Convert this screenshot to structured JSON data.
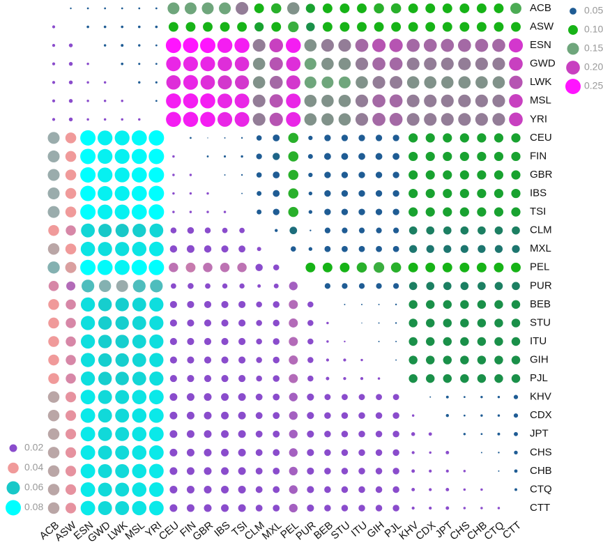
{
  "chart_data": {
    "type": "corrplot",
    "populations": [
      "ACB",
      "ASW",
      "ESN",
      "GWD",
      "LWK",
      "MSL",
      "YRI",
      "CEU",
      "FIN",
      "GBR",
      "IBS",
      "TSI",
      "CLM",
      "MXL",
      "PEL",
      "PUR",
      "BEB",
      "STU",
      "ITU",
      "GIH",
      "PJL",
      "KHV",
      "CDX",
      "JPT",
      "CHS",
      "CHB",
      "CTQ",
      "CTT"
    ],
    "upper_legend": [
      {
        "value": 0.05,
        "label": "0.05",
        "color": "#1f5c94"
      },
      {
        "value": 0.1,
        "label": "0.10",
        "color": "#17b317"
      },
      {
        "value": 0.15,
        "label": "0.15",
        "color": "#6fa67c"
      },
      {
        "value": 0.2,
        "label": "0.20",
        "color": "#c840c0"
      },
      {
        "value": 0.25,
        "label": "0.25",
        "color": "#ff14ff"
      }
    ],
    "lower_legend": [
      {
        "value": 0.02,
        "label": "0.02",
        "color": "#8a4ccc"
      },
      {
        "value": 0.04,
        "label": "0.04",
        "color": "#f09a9a"
      },
      {
        "value": 0.06,
        "label": "0.06",
        "color": "#18c8c8"
      },
      {
        "value": 0.08,
        "label": "0.08",
        "color": "#00ffff"
      }
    ],
    "matrix": [
      [
        null,
        0.003,
        0.004,
        0.004,
        0.004,
        0.004,
        0.004,
        0.15,
        0.15,
        0.15,
        0.15,
        0.17,
        0.1,
        0.11,
        0.16,
        0.09,
        0.1,
        0.1,
        0.1,
        0.11,
        0.11,
        0.1,
        0.1,
        0.1,
        0.1,
        0.1,
        0.1,
        0.13
      ],
      [
        0.003,
        null,
        0.007,
        0.007,
        0.007,
        0.007,
        0.007,
        0.1,
        0.1,
        0.1,
        0.1,
        0.1,
        0.09,
        0.1,
        0.12,
        0.08,
        0.1,
        0.1,
        0.1,
        0.1,
        0.1,
        0.1,
        0.1,
        0.1,
        0.1,
        0.1,
        0.1,
        0.1
      ],
      [
        0.003,
        0.005,
        null,
        0.006,
        0.008,
        0.006,
        0.004,
        0.25,
        0.25,
        0.25,
        0.24,
        0.24,
        0.17,
        0.2,
        0.24,
        0.16,
        0.17,
        0.17,
        0.18,
        0.19,
        0.19,
        0.18,
        0.18,
        0.18,
        0.18,
        0.18,
        0.18,
        0.21
      ],
      [
        0.003,
        0.005,
        0.002,
        null,
        0.007,
        0.005,
        0.004,
        0.23,
        0.23,
        0.23,
        0.22,
        0.22,
        0.16,
        0.19,
        0.22,
        0.15,
        0.16,
        0.16,
        0.17,
        0.18,
        0.18,
        0.17,
        0.17,
        0.17,
        0.17,
        0.17,
        0.17,
        0.2
      ],
      [
        0.003,
        0.005,
        0.002,
        0.002,
        null,
        0.006,
        0.005,
        0.22,
        0.23,
        0.22,
        0.21,
        0.21,
        0.16,
        0.18,
        0.21,
        0.15,
        0.15,
        0.15,
        0.16,
        0.17,
        0.17,
        0.16,
        0.16,
        0.16,
        0.16,
        0.16,
        0.16,
        0.19
      ],
      [
        0.003,
        0.005,
        0.002,
        0.002,
        0.002,
        null,
        0.004,
        0.24,
        0.24,
        0.24,
        0.23,
        0.23,
        0.17,
        0.19,
        0.23,
        0.16,
        0.16,
        0.16,
        0.17,
        0.18,
        0.18,
        0.17,
        0.17,
        0.17,
        0.17,
        0.17,
        0.17,
        0.2
      ],
      [
        0.003,
        0.005,
        0.002,
        0.002,
        0.002,
        0.002,
        null,
        0.24,
        0.24,
        0.24,
        0.23,
        0.23,
        0.17,
        0.19,
        0.23,
        0.16,
        0.16,
        0.16,
        0.17,
        0.18,
        0.18,
        0.17,
        0.17,
        0.17,
        0.17,
        0.17,
        0.17,
        0.2
      ],
      [
        0.048,
        0.04,
        0.08,
        0.075,
        0.075,
        0.078,
        0.08,
        null,
        0.004,
        0.001,
        0.002,
        0.003,
        0.03,
        0.05,
        0.11,
        0.02,
        0.045,
        0.045,
        0.045,
        0.045,
        0.045,
        0.09,
        0.09,
        0.09,
        0.09,
        0.09,
        0.09,
        0.09
      ],
      [
        0.048,
        0.04,
        0.08,
        0.075,
        0.075,
        0.078,
        0.08,
        0.002,
        null,
        0.004,
        0.005,
        0.006,
        0.035,
        0.055,
        0.11,
        0.025,
        0.05,
        0.05,
        0.05,
        0.05,
        0.05,
        0.09,
        0.09,
        0.09,
        0.09,
        0.09,
        0.09,
        0.09
      ],
      [
        0.048,
        0.04,
        0.08,
        0.075,
        0.075,
        0.078,
        0.08,
        0.002,
        0.002,
        null,
        0.002,
        0.003,
        0.03,
        0.05,
        0.11,
        0.02,
        0.045,
        0.045,
        0.045,
        0.045,
        0.045,
        0.09,
        0.09,
        0.09,
        0.09,
        0.09,
        0.09,
        0.09
      ],
      [
        0.048,
        0.04,
        0.08,
        0.075,
        0.075,
        0.078,
        0.08,
        0.002,
        0.002,
        0.002,
        null,
        0.002,
        0.025,
        0.05,
        0.11,
        0.015,
        0.045,
        0.045,
        0.045,
        0.045,
        0.045,
        0.09,
        0.09,
        0.09,
        0.09,
        0.09,
        0.09,
        0.09
      ],
      [
        0.048,
        0.04,
        0.08,
        0.075,
        0.075,
        0.078,
        0.08,
        0.002,
        0.002,
        0.002,
        0.002,
        null,
        0.025,
        0.045,
        0.11,
        0.015,
        0.045,
        0.045,
        0.045,
        0.045,
        0.045,
        0.09,
        0.09,
        0.09,
        0.09,
        0.09,
        0.09,
        0.09
      ],
      [
        0.04,
        0.035,
        0.065,
        0.06,
        0.06,
        0.062,
        0.065,
        0.012,
        0.015,
        0.012,
        0.01,
        0.01,
        null,
        0.01,
        0.06,
        0.003,
        0.035,
        0.035,
        0.035,
        0.035,
        0.035,
        0.07,
        0.07,
        0.07,
        0.07,
        0.07,
        0.07,
        0.07
      ],
      [
        0.045,
        0.04,
        0.07,
        0.068,
        0.068,
        0.07,
        0.072,
        0.018,
        0.02,
        0.018,
        0.017,
        0.016,
        0.006,
        null,
        0.03,
        0.015,
        0.04,
        0.04,
        0.04,
        0.04,
        0.04,
        0.065,
        0.065,
        0.065,
        0.065,
        0.065,
        0.065,
        0.065
      ],
      [
        0.05,
        0.042,
        0.08,
        0.078,
        0.076,
        0.08,
        0.08,
        0.03,
        0.032,
        0.03,
        0.03,
        0.03,
        0.018,
        0.012,
        null,
        0.1,
        0.1,
        0.1,
        0.11,
        0.12,
        0.11,
        0.1,
        0.1,
        0.1,
        0.1,
        0.1,
        0.1,
        0.1
      ],
      [
        0.035,
        0.028,
        0.055,
        0.05,
        0.048,
        0.055,
        0.055,
        0.01,
        0.012,
        0.01,
        0.009,
        0.009,
        0.004,
        0.008,
        0.025,
        null,
        0.035,
        0.035,
        0.035,
        0.035,
        0.035,
        0.07,
        0.07,
        0.07,
        0.07,
        0.07,
        0.07,
        0.07
      ],
      [
        0.04,
        0.035,
        0.068,
        0.062,
        0.062,
        0.065,
        0.068,
        0.017,
        0.017,
        0.017,
        0.017,
        0.017,
        0.012,
        0.015,
        0.028,
        0.012,
        null,
        0.002,
        0.002,
        0.002,
        0.003,
        0.08,
        0.08,
        0.08,
        0.08,
        0.08,
        0.08,
        0.08
      ],
      [
        0.04,
        0.035,
        0.068,
        0.062,
        0.062,
        0.065,
        0.068,
        0.017,
        0.017,
        0.017,
        0.017,
        0.017,
        0.012,
        0.015,
        0.028,
        0.012,
        0.002,
        null,
        0.001,
        0.002,
        0.003,
        0.08,
        0.08,
        0.08,
        0.08,
        0.08,
        0.08,
        0.08
      ],
      [
        0.04,
        0.035,
        0.068,
        0.062,
        0.062,
        0.065,
        0.068,
        0.017,
        0.017,
        0.017,
        0.017,
        0.017,
        0.012,
        0.015,
        0.028,
        0.012,
        0.002,
        0.001,
        null,
        0.002,
        0.002,
        0.08,
        0.08,
        0.08,
        0.08,
        0.08,
        0.08,
        0.08
      ],
      [
        0.04,
        0.035,
        0.068,
        0.062,
        0.062,
        0.065,
        0.068,
        0.017,
        0.017,
        0.017,
        0.017,
        0.017,
        0.012,
        0.015,
        0.028,
        0.012,
        0.003,
        0.003,
        0.002,
        null,
        0.002,
        0.08,
        0.08,
        0.08,
        0.08,
        0.08,
        0.08,
        0.08
      ],
      [
        0.04,
        0.035,
        0.068,
        0.062,
        0.062,
        0.065,
        0.068,
        0.017,
        0.017,
        0.017,
        0.017,
        0.017,
        0.012,
        0.015,
        0.028,
        0.012,
        0.004,
        0.003,
        0.003,
        0.002,
        null,
        0.08,
        0.08,
        0.08,
        0.08,
        0.08,
        0.08,
        0.08
      ],
      [
        0.045,
        0.038,
        0.072,
        0.066,
        0.066,
        0.07,
        0.072,
        0.02,
        0.02,
        0.02,
        0.02,
        0.02,
        0.016,
        0.016,
        0.025,
        0.017,
        0.013,
        0.013,
        0.013,
        0.013,
        0.013,
        null,
        0.002,
        0.008,
        0.004,
        0.006,
        0.006,
        0.02
      ],
      [
        0.045,
        0.038,
        0.072,
        0.066,
        0.066,
        0.07,
        0.072,
        0.02,
        0.02,
        0.02,
        0.02,
        0.02,
        0.016,
        0.016,
        0.025,
        0.017,
        0.015,
        0.015,
        0.015,
        0.015,
        0.015,
        0.002,
        null,
        0.01,
        0.004,
        0.006,
        0.006,
        0.02
      ],
      [
        0.045,
        0.038,
        0.072,
        0.066,
        0.066,
        0.07,
        0.072,
        0.02,
        0.02,
        0.02,
        0.02,
        0.02,
        0.016,
        0.016,
        0.025,
        0.017,
        0.015,
        0.015,
        0.015,
        0.015,
        0.015,
        0.005,
        0.004,
        null,
        0.006,
        0.004,
        0.008,
        0.018
      ],
      [
        0.045,
        0.038,
        0.072,
        0.066,
        0.066,
        0.07,
        0.072,
        0.02,
        0.02,
        0.02,
        0.02,
        0.02,
        0.016,
        0.016,
        0.025,
        0.017,
        0.015,
        0.015,
        0.015,
        0.015,
        0.015,
        0.003,
        0.002,
        0.004,
        null,
        0.002,
        0.003,
        0.015
      ],
      [
        0.045,
        0.038,
        0.072,
        0.066,
        0.066,
        0.07,
        0.072,
        0.02,
        0.02,
        0.02,
        0.02,
        0.02,
        0.016,
        0.016,
        0.025,
        0.017,
        0.015,
        0.015,
        0.015,
        0.015,
        0.015,
        0.004,
        0.003,
        0.003,
        0.002,
        null,
        0.002,
        0.012
      ],
      [
        0.045,
        0.038,
        0.072,
        0.066,
        0.066,
        0.07,
        0.072,
        0.02,
        0.02,
        0.02,
        0.02,
        0.02,
        0.016,
        0.016,
        0.025,
        0.017,
        0.015,
        0.015,
        0.015,
        0.015,
        0.015,
        0.004,
        0.003,
        0.004,
        0.002,
        0.002,
        null,
        0.008
      ],
      [
        0.045,
        0.038,
        0.072,
        0.066,
        0.066,
        0.07,
        0.072,
        0.02,
        0.02,
        0.02,
        0.02,
        0.02,
        0.016,
        0.016,
        0.025,
        0.017,
        0.015,
        0.015,
        0.015,
        0.015,
        0.015,
        0.003,
        0.003,
        0.004,
        0.002,
        0.002,
        0.002,
        null
      ]
    ]
  }
}
